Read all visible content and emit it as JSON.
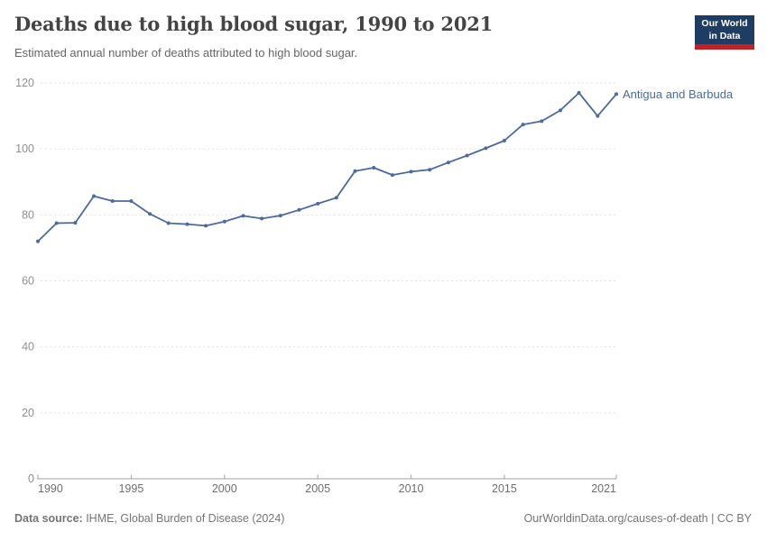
{
  "header": {
    "title": "Deaths due to high blood sugar, 1990 to 2021",
    "subtitle": "Estimated annual number of deaths attributed to high blood sugar.",
    "logo_line1": "Our World",
    "logo_line2": "in Data"
  },
  "chart_data": {
    "type": "line",
    "title": "Deaths due to high blood sugar, 1990 to 2021",
    "xlabel": "",
    "ylabel": "",
    "ylim": [
      0,
      120
    ],
    "yticks": [
      0,
      20,
      40,
      60,
      80,
      100,
      120
    ],
    "xticks": [
      1990,
      1995,
      2000,
      2005,
      2010,
      2015,
      2021
    ],
    "grid": "horizontal-dashed",
    "legend_position": "end-of-line",
    "series": [
      {
        "name": "Antigua and Barbuda",
        "x": [
          1990,
          1991,
          1992,
          1993,
          1994,
          1995,
          1996,
          1997,
          1998,
          1999,
          2000,
          2001,
          2002,
          2003,
          2004,
          2005,
          2006,
          2007,
          2008,
          2009,
          2010,
          2011,
          2012,
          2013,
          2014,
          2015,
          2016,
          2017,
          2018,
          2019,
          2020,
          2021
        ],
        "values": [
          72.0,
          77.5,
          77.6,
          85.7,
          84.2,
          84.2,
          80.3,
          77.5,
          77.2,
          76.7,
          78.0,
          79.7,
          78.9,
          79.8,
          81.5,
          83.4,
          85.2,
          93.3,
          94.3,
          92.1,
          93.1,
          93.7,
          95.9,
          98.0,
          100.2,
          102.5,
          107.4,
          108.4,
          111.7,
          117.0,
          110.0,
          116.6
        ]
      }
    ]
  },
  "colors": {
    "line": "#4C6A9C",
    "entity_label": "#4C6A9C",
    "gridline": "#e2e2e2",
    "axis": "#a3a3a3",
    "y_tick_label": "#8f8f8f",
    "x_tick_label": "#6e6e6e",
    "logo_bg": "#1d3d63",
    "logo_red": "#c32026"
  },
  "footer": {
    "source_label": "Data source:",
    "source_value": " IHME, Global Burden of Disease (2024)",
    "right_text": "OurWorldinData.org/causes-of-death | CC BY"
  }
}
